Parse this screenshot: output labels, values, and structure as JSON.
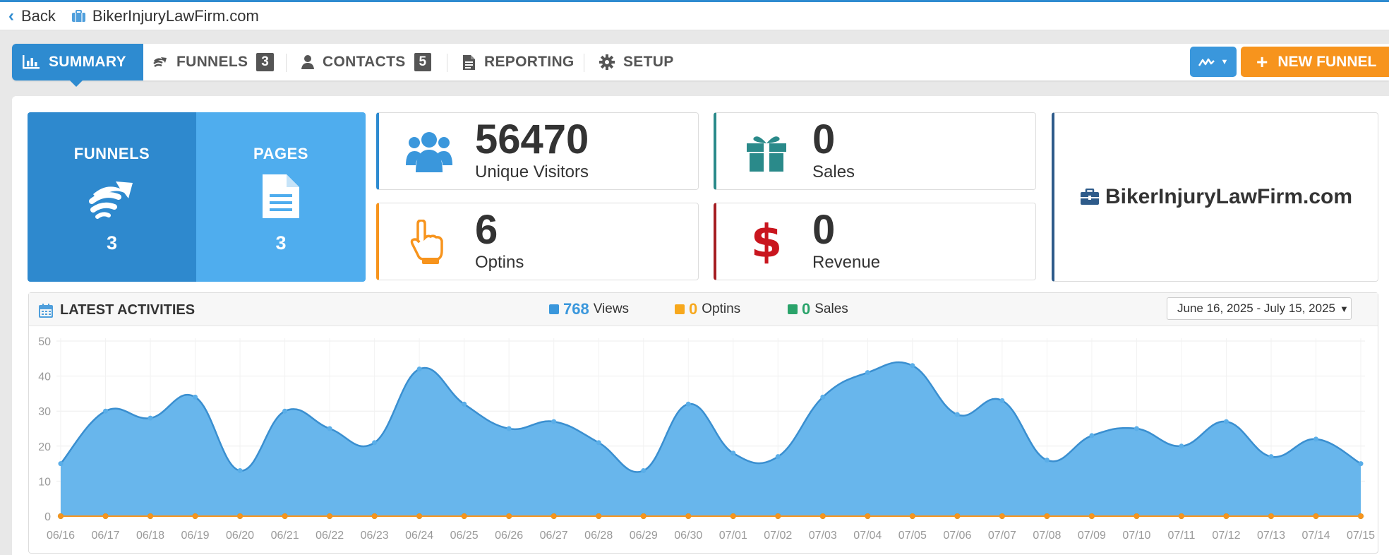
{
  "topbar": {
    "back_label": "Back",
    "site_name": "BikerInjuryLawFirm.com"
  },
  "nav": {
    "tabs": [
      {
        "label": "SUMMARY"
      },
      {
        "label": "FUNNELS",
        "badge": "3"
      },
      {
        "label": "CONTACTS",
        "badge": "5"
      },
      {
        "label": "REPORTING"
      },
      {
        "label": "SETUP"
      }
    ],
    "new_funnel_label": "NEW FUNNEL"
  },
  "summary": {
    "funnels_label": "FUNNELS",
    "funnels_count": "3",
    "pages_label": "PAGES",
    "pages_count": "3"
  },
  "stats": {
    "visitors": {
      "value": "56470",
      "label": "Unique Visitors"
    },
    "sales": {
      "value": "0",
      "label": "Sales"
    },
    "optins": {
      "value": "6",
      "label": "Optins"
    },
    "revenue": {
      "value": "0",
      "label": "Revenue"
    }
  },
  "brand": {
    "name": "BikerInjuryLawFirm.com"
  },
  "activity": {
    "title": "LATEST ACTIVITIES",
    "legend": [
      {
        "count": "768",
        "label": "Views"
      },
      {
        "count": "0",
        "label": "Optins"
      },
      {
        "count": "0",
        "label": "Sales"
      }
    ],
    "date_range": "June 16, 2025 - July 15, 2025"
  },
  "colors": {
    "primary": "#2e8bd0",
    "light_blue": "#4fadee",
    "orange": "#f7941d",
    "teal": "#2a8a8a",
    "red": "#c9151e",
    "green": "#2aa36a"
  },
  "chart_data": {
    "type": "area",
    "title": "LATEST ACTIVITIES",
    "categories": [
      "06/16",
      "06/17",
      "06/18",
      "06/19",
      "06/20",
      "06/21",
      "06/22",
      "06/23",
      "06/24",
      "06/25",
      "06/26",
      "06/27",
      "06/28",
      "06/29",
      "06/30",
      "07/01",
      "07/02",
      "07/03",
      "07/04",
      "07/05",
      "07/06",
      "07/07",
      "07/08",
      "07/09",
      "07/10",
      "07/11",
      "07/12",
      "07/13",
      "07/14",
      "07/15"
    ],
    "series": [
      {
        "name": "Views",
        "color": "#3a97dc",
        "values": [
          15,
          30,
          28,
          34,
          13,
          30,
          25,
          21,
          42,
          32,
          25,
          27,
          21,
          13,
          32,
          18,
          17,
          34,
          41,
          43,
          29,
          33,
          16,
          23,
          25,
          20,
          27,
          17,
          22,
          15
        ]
      },
      {
        "name": "Optins",
        "color": "#f7941d",
        "values": [
          0,
          0,
          0,
          0,
          0,
          0,
          0,
          0,
          0,
          0,
          0,
          0,
          0,
          0,
          0,
          0,
          0,
          0,
          0,
          0,
          0,
          0,
          0,
          0,
          0,
          0,
          0,
          0,
          0,
          0
        ]
      },
      {
        "name": "Sales",
        "color": "#2aa36a",
        "values": [
          0,
          0,
          0,
          0,
          0,
          0,
          0,
          0,
          0,
          0,
          0,
          0,
          0,
          0,
          0,
          0,
          0,
          0,
          0,
          0,
          0,
          0,
          0,
          0,
          0,
          0,
          0,
          0,
          0,
          0
        ]
      }
    ],
    "ylim": [
      0,
      50
    ],
    "yticks": [
      0,
      10,
      20,
      30,
      40,
      50
    ],
    "grid": true
  }
}
